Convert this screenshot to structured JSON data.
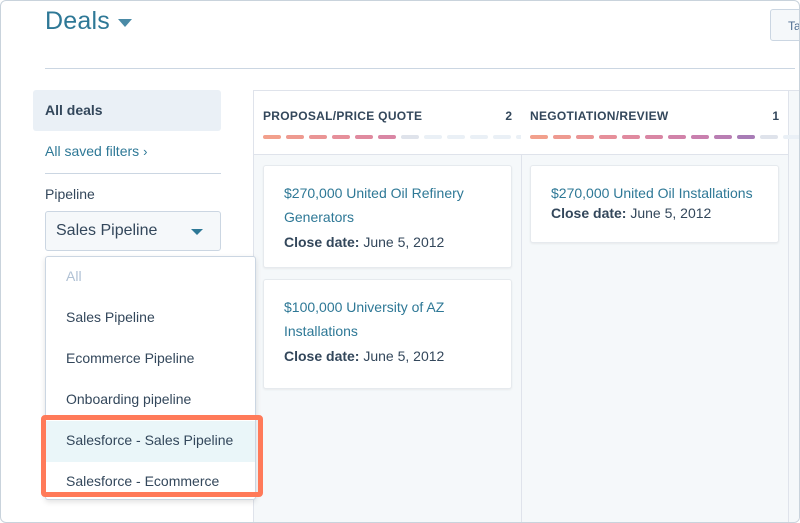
{
  "header": {
    "title": "Deals",
    "top_button_label": "Ta"
  },
  "sidebar": {
    "all_deals": "All deals",
    "saved_filters": "All saved filters",
    "pipeline_label": "Pipeline",
    "pipeline_selected": "Sales Pipeline"
  },
  "dropdown": {
    "options": [
      "All",
      "Sales Pipeline",
      "Ecommerce Pipeline",
      "Onboarding pipeline",
      "Salesforce - Sales Pipeline",
      "Salesforce - Ecommerce"
    ]
  },
  "board": {
    "columns": [
      {
        "name": "PROPOSAL/PRICE QUOTE",
        "count": "2",
        "segments": [
          "#f2a08c",
          "#ee9a90",
          "#ea9595",
          "#e68f9a",
          "#e08a9f",
          "#d986a4",
          "#dfe3eb",
          "#eaf0f6",
          "#eaf0f6",
          "#eaf0f6",
          "#eaf0f6",
          "#eaf0f6"
        ],
        "cards": [
          {
            "title_line1": "$270,000 United Oil Refinery",
            "title_line2": "Generators",
            "close_label": "Close date:",
            "close_value": "June 5, 2012"
          },
          {
            "title_line1": "$100,000 University of AZ",
            "title_line2": "Installations",
            "close_label": "Close date:",
            "close_value": "June 5, 2012"
          }
        ]
      },
      {
        "name": "NEGOTIATION/REVIEW",
        "count": "1",
        "segments": [
          "#f2a08c",
          "#ee9a90",
          "#ea9595",
          "#e68f9a",
          "#e08a9f",
          "#d986a4",
          "#d182a9",
          "#c97fae",
          "#b97eb3",
          "#a87cb6",
          "#dfe3eb",
          "#eaf0f6"
        ],
        "cards": [
          {
            "title_line1": "$270,000 United Oil Installations",
            "title_line2": "",
            "close_label": "Close date:",
            "close_value": "June 5, 2012"
          }
        ]
      }
    ]
  },
  "colors": {
    "accent": "#2e7896",
    "highlight": "#ff7a59"
  }
}
